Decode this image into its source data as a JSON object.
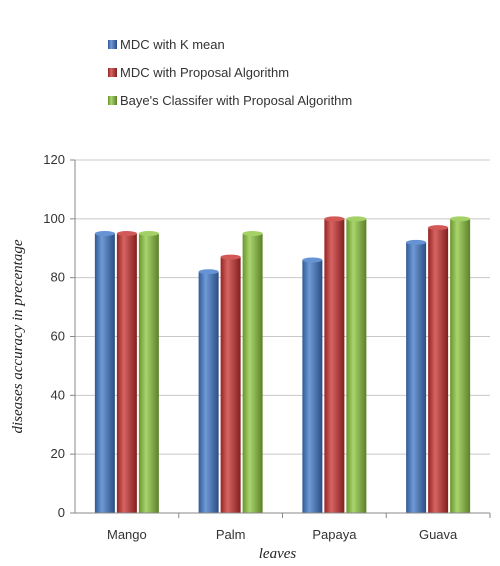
{
  "chart_data": {
    "type": "bar",
    "categories": [
      "Mango",
      "Palm",
      "Papaya",
      "Guava"
    ],
    "series": [
      {
        "name": "MDC with K mean",
        "values": [
          95,
          82,
          86,
          92
        ],
        "color": "#3f78c8"
      },
      {
        "name": "MDC with Proposal Algorithm",
        "values": [
          95,
          87,
          100,
          97
        ],
        "color": "#c8302e"
      },
      {
        "name": "Baye's Classifer with Proposal Algorithm",
        "values": [
          95,
          95,
          100,
          100
        ],
        "color": "#8cc63e"
      }
    ],
    "xlabel": "leaves",
    "ylabel": "diseases accuracy in precentage",
    "ylim": [
      0,
      120
    ],
    "yticks": [
      "0",
      "20",
      "40",
      "60",
      "80",
      "100",
      "120"
    ],
    "grid": true,
    "legend_position": "top"
  }
}
